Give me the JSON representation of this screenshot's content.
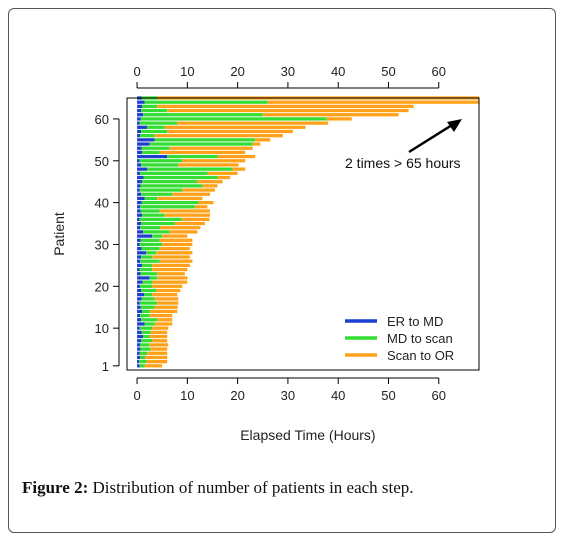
{
  "caption": {
    "label": "Figure 2:",
    "text": "Distribution of number of patients in each step."
  },
  "chart_data": {
    "type": "bar",
    "orientation": "horizontal-stacked",
    "xlabel": "Elapsed Time (Hours)",
    "ylabel": "Patient",
    "xlim": [
      -2,
      68
    ],
    "ylim": [
      0,
      65
    ],
    "x_ticks": [
      0,
      10,
      20,
      30,
      40,
      50,
      60
    ],
    "x_ticks_top": [
      0,
      10,
      20,
      30,
      40,
      50,
      60
    ],
    "y_ticks": [
      1,
      10,
      20,
      30,
      40,
      50,
      60
    ],
    "legend_position": "bottom-right",
    "annotation": "2 times > 65 hours",
    "series": [
      {
        "name": "ER to MD",
        "color": "#1f3fcf",
        "values": [
          0.5,
          0.4,
          0.6,
          0.5,
          0.7,
          0.6,
          0.8,
          1.2,
          0.9,
          0.5,
          1.5,
          0.8,
          0.6,
          1.0,
          0.7,
          0.5,
          0.9,
          1.4,
          0.8,
          0.6,
          1.1,
          2.5,
          0.7,
          0.5,
          1.0,
          0.6,
          0.8,
          1.8,
          0.9,
          0.5,
          0.7,
          3.0,
          1.2,
          0.6,
          0.8,
          0.5,
          1.0,
          0.7,
          0.6,
          0.9,
          1.5,
          0.8,
          0.5,
          0.7,
          1.0,
          1.3,
          0.6,
          2.0,
          0.8,
          0.5,
          6.0,
          1.0,
          0.9,
          2.5,
          3.5,
          0.6,
          0.8,
          2.0,
          0.5,
          0.7,
          1.2,
          0.8,
          1.0,
          1.5,
          0.9
        ]
      },
      {
        "name": "MD to scan",
        "color": "#33dd33",
        "values": [
          1.0,
          1.5,
          1.0,
          1.5,
          2.0,
          1.8,
          2.2,
          1.3,
          1.8,
          2.5,
          2.0,
          3.2,
          1.9,
          1.5,
          2.8,
          3.5,
          2.6,
          1.6,
          3.0,
          2.4,
          2.0,
          1.5,
          3.3,
          2.5,
          2.0,
          3.9,
          2.2,
          2.0,
          3.6,
          4.5,
          3.8,
          2.0,
          5.3,
          4.0,
          6.7,
          8.4,
          4.5,
          3.8,
          10.9,
          11.3,
          2.5,
          6.2,
          8.5,
          12.3,
          11.0,
          14.7,
          13.4,
          17.0,
          7.4,
          8.5,
          10.0,
          3.5,
          5.6,
          20.5,
          20.0,
          2.9,
          5.2,
          3.5,
          7.5,
          37.0,
          23.8,
          5.2,
          3.0,
          24.5,
          3.1
        ]
      },
      {
        "name": "Scan to OR",
        "color": "#ffa21a",
        "values": [
          3.5,
          4.1,
          4.4,
          4.0,
          3.3,
          3.8,
          3.0,
          3.5,
          3.3,
          3.2,
          3.5,
          3.0,
          4.5,
          5.5,
          4.6,
          4.2,
          4.7,
          5.0,
          4.8,
          6.0,
          6.9,
          6.0,
          5.5,
          7.0,
          7.5,
          6.5,
          7.5,
          7.2,
          6.0,
          6.0,
          6.5,
          5.0,
          5.5,
          8.0,
          6.0,
          5.5,
          9.0,
          10.0,
          2.5,
          3.0,
          9.0,
          7.5,
          6.5,
          3.0,
          5.0,
          2.5,
          6.0,
          2.5,
          12.0,
          12.5,
          7.5,
          17.0,
          16.5,
          1.5,
          3.0,
          25.5,
          25.0,
          28.0,
          30.0,
          5.0,
          27.0,
          48.0,
          51.0,
          42.0,
          64.0
        ]
      }
    ]
  }
}
